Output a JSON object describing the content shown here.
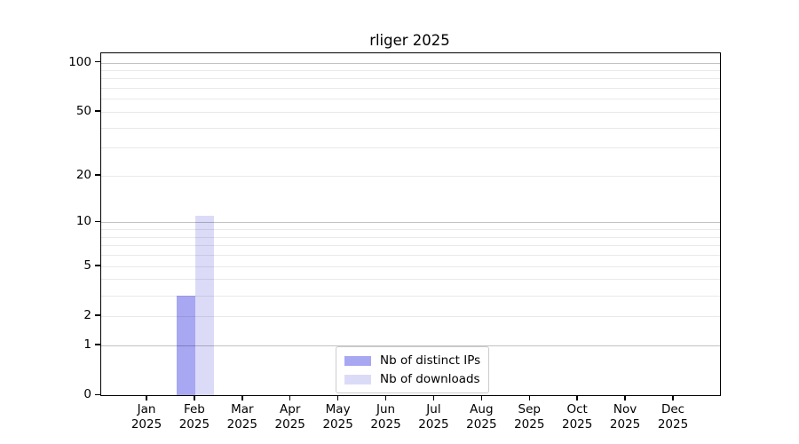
{
  "chart_data": {
    "type": "bar",
    "title": "rliger 2025",
    "months": [
      "Jan",
      "Feb",
      "Mar",
      "Apr",
      "May",
      "Jun",
      "Jul",
      "Aug",
      "Sep",
      "Oct",
      "Nov",
      "Dec"
    ],
    "year": "2025",
    "series": [
      {
        "name": "Nb of distinct IPs",
        "color": "#a7a7f2",
        "values": [
          0,
          3,
          0,
          0,
          0,
          0,
          0,
          0,
          0,
          0,
          0,
          0
        ]
      },
      {
        "name": "Nb of downloads",
        "color": "#dbdbf8",
        "values": [
          0,
          11,
          0,
          0,
          0,
          0,
          0,
          0,
          0,
          0,
          0,
          0
        ]
      }
    ],
    "y_ticks": [
      0,
      1,
      2,
      5,
      10,
      20,
      50,
      100
    ],
    "y_minor_gridlines": [
      2,
      3,
      4,
      5,
      6,
      7,
      8,
      9,
      20,
      30,
      40,
      50,
      60,
      70,
      80,
      90
    ],
    "y_major_gridlines": [
      1,
      10,
      100
    ],
    "y_scale": "log1p",
    "ylim": [
      0,
      114
    ],
    "xlabel": "",
    "ylabel": "",
    "grid": "horizontal",
    "legend_position": "lower center"
  }
}
